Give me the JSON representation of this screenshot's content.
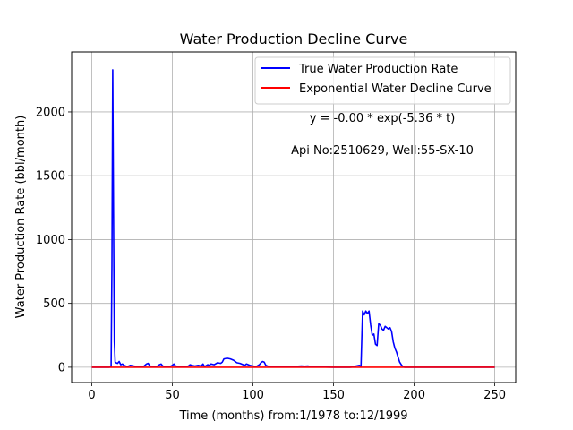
{
  "chart_data": {
    "type": "line",
    "title": "Water Production Decline Curve",
    "xlabel": "Time (months) from:1/1978 to:12/1999",
    "ylabel": "Water Production Rate (bbl/month)",
    "xlim": [
      -12.5,
      263
    ],
    "ylim": [
      -120,
      2470
    ],
    "xticks": [
      0,
      50,
      100,
      150,
      200,
      250
    ],
    "yticks": [
      0,
      500,
      1000,
      1500,
      2000
    ],
    "grid": true,
    "legend_position": "top-right",
    "annotations": [
      "y = -0.00 * exp(-5.36 * t)",
      "Api No:2510629, Well:55-SX-10"
    ],
    "series": [
      {
        "name": "True Water Production Rate",
        "color": "#0000ff",
        "points": [
          [
            0,
            0
          ],
          [
            11,
            0
          ],
          [
            12,
            5
          ],
          [
            12.5,
            800
          ],
          [
            13,
            2330
          ],
          [
            13.5,
            1200
          ],
          [
            14,
            200
          ],
          [
            14.5,
            40
          ],
          [
            15,
            35
          ],
          [
            16,
            30
          ],
          [
            17,
            45
          ],
          [
            18,
            20
          ],
          [
            19,
            25
          ],
          [
            20,
            15
          ],
          [
            21,
            10
          ],
          [
            22,
            5
          ],
          [
            24,
            15
          ],
          [
            26,
            10
          ],
          [
            28,
            5
          ],
          [
            30,
            3
          ],
          [
            32,
            5
          ],
          [
            34,
            25
          ],
          [
            35,
            30
          ],
          [
            36,
            10
          ],
          [
            38,
            5
          ],
          [
            40,
            3
          ],
          [
            42,
            20
          ],
          [
            43,
            25
          ],
          [
            44,
            10
          ],
          [
            46,
            5
          ],
          [
            48,
            3
          ],
          [
            50,
            15
          ],
          [
            51,
            25
          ],
          [
            52,
            10
          ],
          [
            54,
            5
          ],
          [
            56,
            8
          ],
          [
            58,
            3
          ],
          [
            60,
            10
          ],
          [
            61,
            20
          ],
          [
            62,
            15
          ],
          [
            64,
            10
          ],
          [
            66,
            15
          ],
          [
            68,
            10
          ],
          [
            69,
            25
          ],
          [
            70,
            5
          ],
          [
            72,
            20
          ],
          [
            73,
            15
          ],
          [
            74,
            25
          ],
          [
            76,
            20
          ],
          [
            78,
            35
          ],
          [
            80,
            30
          ],
          [
            81,
            40
          ],
          [
            82,
            65
          ],
          [
            84,
            70
          ],
          [
            86,
            65
          ],
          [
            88,
            55
          ],
          [
            90,
            35
          ],
          [
            92,
            30
          ],
          [
            94,
            20
          ],
          [
            95,
            15
          ],
          [
            96,
            25
          ],
          [
            98,
            15
          ],
          [
            100,
            10
          ],
          [
            102,
            5
          ],
          [
            104,
            20
          ],
          [
            105,
            35
          ],
          [
            106,
            45
          ],
          [
            107,
            40
          ],
          [
            108,
            15
          ],
          [
            110,
            5
          ],
          [
            112,
            3
          ],
          [
            116,
            3
          ],
          [
            120,
            5
          ],
          [
            124,
            5
          ],
          [
            128,
            8
          ],
          [
            130,
            10
          ],
          [
            132,
            8
          ],
          [
            134,
            10
          ],
          [
            136,
            5
          ],
          [
            140,
            3
          ],
          [
            150,
            0
          ],
          [
            160,
            0
          ],
          [
            163,
            3
          ],
          [
            164,
            10
          ],
          [
            166,
            15
          ],
          [
            167,
            5
          ],
          [
            168,
            440
          ],
          [
            169,
            410
          ],
          [
            170,
            440
          ],
          [
            171,
            420
          ],
          [
            172,
            440
          ],
          [
            173,
            330
          ],
          [
            174,
            250
          ],
          [
            175,
            260
          ],
          [
            176,
            180
          ],
          [
            177,
            170
          ],
          [
            178,
            340
          ],
          [
            179,
            330
          ],
          [
            180,
            300
          ],
          [
            181,
            290
          ],
          [
            182,
            320
          ],
          [
            183,
            310
          ],
          [
            184,
            300
          ],
          [
            185,
            310
          ],
          [
            186,
            280
          ],
          [
            187,
            200
          ],
          [
            188,
            150
          ],
          [
            189,
            120
          ],
          [
            190,
            80
          ],
          [
            191,
            40
          ],
          [
            192,
            20
          ],
          [
            193,
            5
          ],
          [
            194,
            0
          ],
          [
            250,
            0
          ]
        ]
      },
      {
        "name": "Exponential Water Decline Curve",
        "color": "#ff0000",
        "x": [
          0,
          250
        ],
        "y": [
          0,
          0
        ]
      }
    ]
  }
}
